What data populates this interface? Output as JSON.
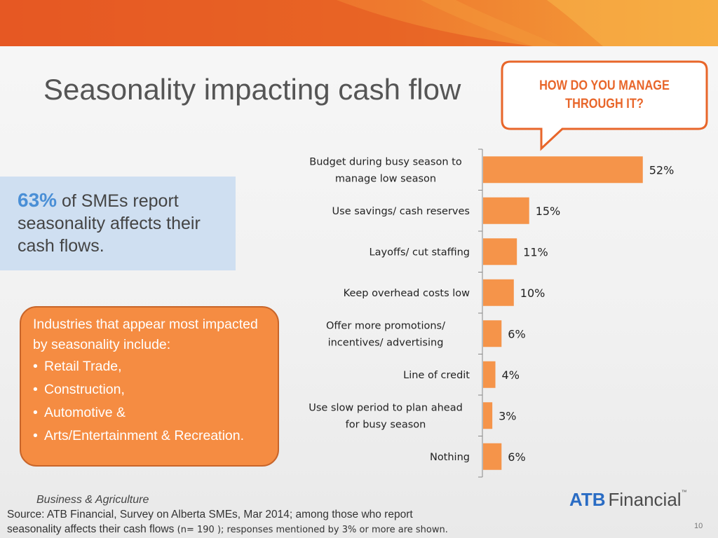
{
  "title": "Seasonality impacting cash flow",
  "callout": {
    "line1": "HOW DO YOU MANAGE",
    "line2": "THROUGH IT?"
  },
  "stat": {
    "pct": "63%",
    "text": " of SMEs report seasonality affects their cash flows."
  },
  "industries": {
    "intro": "Industries that appear most impacted by seasonality include:",
    "items": [
      "Retail Trade,",
      "Construction,",
      "Automotive &",
      "Arts/Entertainment & Recreation."
    ]
  },
  "chart_data": {
    "type": "bar",
    "orientation": "horizontal",
    "categories": [
      [
        "Budget during busy season to",
        "manage low season"
      ],
      [
        "Use savings/ cash reserves"
      ],
      [
        "Layoffs/ cut staffing"
      ],
      [
        "Keep overhead costs low"
      ],
      [
        "Offer more promotions/",
        "incentives/ advertising"
      ],
      [
        "Line of credit"
      ],
      [
        "Use slow period to plan ahead",
        "for busy season"
      ],
      [
        "Nothing"
      ]
    ],
    "values": [
      52,
      15,
      11,
      10,
      6,
      4,
      3,
      6
    ],
    "value_labels": [
      "52%",
      "15%",
      "11%",
      "10%",
      "6%",
      "4%",
      "3%",
      "6%"
    ],
    "xlim": [
      0,
      55
    ],
    "bar_color": "#f5944a",
    "grid": false
  },
  "footer": {
    "unit": "Business & Agriculture",
    "source_line1": "Source:  ATB Financial, Survey on Alberta SMEs, Mar 2014;  among those who report",
    "source_line2_a": "seasonality affects their cash flows ",
    "source_line2_b": "(n= 190 ); responses mentioned by 3% or more are shown.",
    "page": "10"
  },
  "logo": {
    "part1": "ATB",
    "part2": "Financial",
    "tm": "™"
  },
  "colors": {
    "accent": "#e8662a",
    "orange_box": "#f58c42",
    "stat_box": "#cfdff1",
    "brand_blue": "#2a6cc4"
  }
}
